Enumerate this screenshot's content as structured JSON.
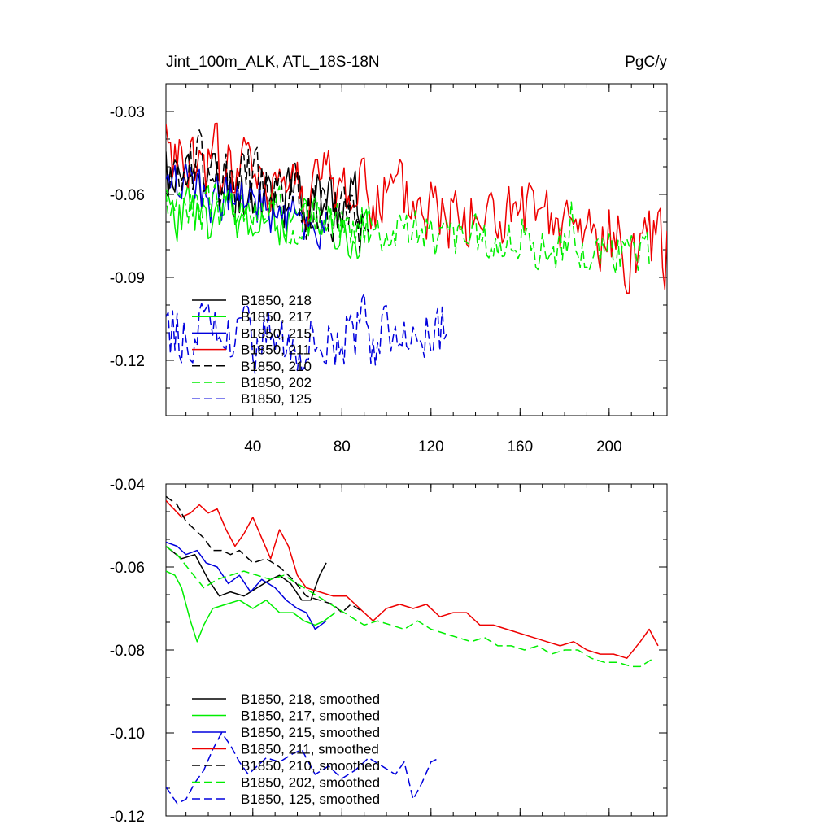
{
  "page": {
    "title_left": "Jint_100m_ALK, ATL_18S-18N",
    "title_right": "PgC/y"
  },
  "chart_data": [
    {
      "type": "line",
      "title": "Jint_100m_ALK, ATL_18S-18N",
      "units": "PgC/y",
      "xlim": [
        1,
        226
      ],
      "ylim": [
        -0.14,
        -0.02
      ],
      "xticks": [
        40,
        80,
        120,
        160,
        200
      ],
      "xtick_labels": [
        "40",
        "80",
        "120",
        "160",
        "200"
      ],
      "yticks": [
        -0.03,
        -0.06,
        -0.09,
        -0.12
      ],
      "ytick_labels": [
        "-0.03",
        "-0.06",
        "-0.09",
        "-0.12"
      ],
      "series": [
        {
          "name": "B1850, 218",
          "color": "#000000",
          "dash": "solid",
          "x_start": 1,
          "x_end": 88,
          "level_start": -0.054,
          "level_end": -0.064,
          "noise": 0.009,
          "seed": 11
        },
        {
          "name": "B1850, 217",
          "color": "#00ee00",
          "dash": "solid",
          "x_start": 1,
          "x_end": 93,
          "level_start": -0.066,
          "level_end": -0.073,
          "noise": 0.007,
          "seed": 23
        },
        {
          "name": "B1850, 215",
          "color": "#0000dd",
          "dash": "solid",
          "x_start": 1,
          "x_end": 73,
          "level_start": -0.057,
          "level_end": -0.071,
          "noise": 0.007,
          "seed": 37
        },
        {
          "name": "B1850, 211",
          "color": "#ee0000",
          "dash": "solid",
          "x_start": 1,
          "x_end": 226,
          "level_start": -0.047,
          "level_end": -0.081,
          "noise": 0.01,
          "seed": 41
        },
        {
          "name": "B1850, 210",
          "color": "#000000",
          "dash": "dashed",
          "x_start": 1,
          "x_end": 92,
          "level_start": -0.048,
          "level_end": -0.072,
          "noise": 0.009,
          "seed": 53
        },
        {
          "name": "B1850, 202",
          "color": "#00ee00",
          "dash": "dashed",
          "x_start": 1,
          "x_end": 218,
          "level_start": -0.063,
          "level_end": -0.083,
          "noise": 0.006,
          "seed": 67
        },
        {
          "name": "B1850, 125",
          "color": "#0000dd",
          "dash": "dashed",
          "x_start": 1,
          "x_end": 127,
          "level_start": -0.11,
          "level_end": -0.11,
          "noise": 0.009,
          "seed": 79
        }
      ],
      "legend": [
        "B1850, 218",
        "B1850, 217",
        "B1850, 215",
        "B1850, 211",
        "B1850, 210",
        "B1850, 202",
        "B1850, 125"
      ],
      "legend_position": "bottom-left"
    },
    {
      "type": "line",
      "xlim": [
        1,
        226
      ],
      "ylim": [
        -0.12,
        -0.04
      ],
      "xticks": [
        40,
        80,
        120,
        160,
        200
      ],
      "yticks": [
        -0.04,
        -0.06,
        -0.08,
        -0.1,
        -0.12
      ],
      "ytick_labels": [
        "-0.04",
        "-0.06",
        "-0.08",
        "-0.10",
        "-0.12"
      ],
      "series": [
        {
          "name": "B1850, 218, smoothed",
          "color": "#000000",
          "dash": "solid",
          "x_start": 1,
          "x_end": 73,
          "points": [
            [
              1,
              -0.055
            ],
            [
              8,
              -0.058
            ],
            [
              14,
              -0.057
            ],
            [
              20,
              -0.063
            ],
            [
              25,
              -0.067
            ],
            [
              30,
              -0.066
            ],
            [
              36,
              -0.067
            ],
            [
              42,
              -0.065
            ],
            [
              48,
              -0.063
            ],
            [
              52,
              -0.062
            ],
            [
              57,
              -0.064
            ],
            [
              62,
              -0.068
            ],
            [
              66,
              -0.068
            ],
            [
              70,
              -0.062
            ],
            [
              73,
              -0.059
            ]
          ]
        },
        {
          "name": "B1850, 217, smoothed",
          "color": "#00ee00",
          "dash": "solid",
          "x_start": 1,
          "x_end": 77,
          "points": [
            [
              1,
              -0.061
            ],
            [
              5,
              -0.062
            ],
            [
              8,
              -0.065
            ],
            [
              12,
              -0.073
            ],
            [
              15,
              -0.078
            ],
            [
              18,
              -0.074
            ],
            [
              22,
              -0.07
            ],
            [
              28,
              -0.069
            ],
            [
              34,
              -0.068
            ],
            [
              40,
              -0.07
            ],
            [
              46,
              -0.068
            ],
            [
              52,
              -0.071
            ],
            [
              58,
              -0.071
            ],
            [
              63,
              -0.073
            ],
            [
              68,
              -0.074
            ],
            [
              72,
              -0.073
            ],
            [
              77,
              -0.071
            ]
          ]
        },
        {
          "name": "B1850, 215, smoothed",
          "color": "#0000dd",
          "dash": "solid",
          "x_start": 1,
          "x_end": 73,
          "points": [
            [
              1,
              -0.054
            ],
            [
              6,
              -0.055
            ],
            [
              10,
              -0.057
            ],
            [
              15,
              -0.056
            ],
            [
              19,
              -0.059
            ],
            [
              24,
              -0.06
            ],
            [
              29,
              -0.064
            ],
            [
              34,
              -0.062
            ],
            [
              39,
              -0.066
            ],
            [
              44,
              -0.063
            ],
            [
              50,
              -0.065
            ],
            [
              55,
              -0.068
            ],
            [
              60,
              -0.07
            ],
            [
              64,
              -0.071
            ],
            [
              68,
              -0.075
            ],
            [
              73,
              -0.073
            ]
          ]
        },
        {
          "name": "B1850, 211, smoothed",
          "color": "#ee0000",
          "dash": "solid",
          "x_start": 1,
          "x_end": 222,
          "points": [
            [
              1,
              -0.044
            ],
            [
              8,
              -0.048
            ],
            [
              12,
              -0.047
            ],
            [
              16,
              -0.045
            ],
            [
              20,
              -0.047
            ],
            [
              24,
              -0.046
            ],
            [
              28,
              -0.051
            ],
            [
              32,
              -0.055
            ],
            [
              36,
              -0.052
            ],
            [
              40,
              -0.048
            ],
            [
              44,
              -0.053
            ],
            [
              48,
              -0.058
            ],
            [
              52,
              -0.051
            ],
            [
              56,
              -0.055
            ],
            [
              60,
              -0.062
            ],
            [
              64,
              -0.065
            ],
            [
              70,
              -0.066
            ],
            [
              76,
              -0.067
            ],
            [
              82,
              -0.067
            ],
            [
              88,
              -0.07
            ],
            [
              94,
              -0.073
            ],
            [
              100,
              -0.07
            ],
            [
              106,
              -0.069
            ],
            [
              112,
              -0.07
            ],
            [
              118,
              -0.069
            ],
            [
              124,
              -0.072
            ],
            [
              130,
              -0.071
            ],
            [
              136,
              -0.071
            ],
            [
              142,
              -0.074
            ],
            [
              148,
              -0.074
            ],
            [
              154,
              -0.075
            ],
            [
              160,
              -0.076
            ],
            [
              166,
              -0.077
            ],
            [
              172,
              -0.078
            ],
            [
              178,
              -0.079
            ],
            [
              184,
              -0.078
            ],
            [
              190,
              -0.08
            ],
            [
              196,
              -0.081
            ],
            [
              202,
              -0.081
            ],
            [
              208,
              -0.082
            ],
            [
              214,
              -0.078
            ],
            [
              218,
              -0.075
            ],
            [
              222,
              -0.079
            ]
          ]
        },
        {
          "name": "B1850, 210, smoothed",
          "color": "#000000",
          "dash": "dashed",
          "x_start": 1,
          "x_end": 90,
          "points": [
            [
              1,
              -0.043
            ],
            [
              6,
              -0.045
            ],
            [
              10,
              -0.049
            ],
            [
              14,
              -0.051
            ],
            [
              18,
              -0.053
            ],
            [
              22,
              -0.056
            ],
            [
              26,
              -0.056
            ],
            [
              30,
              -0.057
            ],
            [
              34,
              -0.056
            ],
            [
              40,
              -0.059
            ],
            [
              46,
              -0.058
            ],
            [
              52,
              -0.06
            ],
            [
              58,
              -0.063
            ],
            [
              64,
              -0.067
            ],
            [
              70,
              -0.068
            ],
            [
              76,
              -0.069
            ],
            [
              80,
              -0.071
            ],
            [
              84,
              -0.069
            ],
            [
              90,
              -0.071
            ]
          ]
        },
        {
          "name": "B1850, 202, smoothed",
          "color": "#00ee00",
          "dash": "dashed",
          "x_start": 1,
          "x_end": 220,
          "points": [
            [
              1,
              -0.055
            ],
            [
              6,
              -0.057
            ],
            [
              12,
              -0.061
            ],
            [
              18,
              -0.065
            ],
            [
              24,
              -0.063
            ],
            [
              30,
              -0.062
            ],
            [
              36,
              -0.061
            ],
            [
              42,
              -0.062
            ],
            [
              48,
              -0.063
            ],
            [
              54,
              -0.062
            ],
            [
              60,
              -0.064
            ],
            [
              66,
              -0.066
            ],
            [
              72,
              -0.068
            ],
            [
              78,
              -0.07
            ],
            [
              84,
              -0.072
            ],
            [
              90,
              -0.074
            ],
            [
              96,
              -0.073
            ],
            [
              102,
              -0.074
            ],
            [
              108,
              -0.075
            ],
            [
              114,
              -0.073
            ],
            [
              120,
              -0.075
            ],
            [
              126,
              -0.076
            ],
            [
              132,
              -0.077
            ],
            [
              138,
              -0.078
            ],
            [
              144,
              -0.077
            ],
            [
              150,
              -0.079
            ],
            [
              156,
              -0.079
            ],
            [
              162,
              -0.08
            ],
            [
              168,
              -0.079
            ],
            [
              174,
              -0.081
            ],
            [
              180,
              -0.08
            ],
            [
              186,
              -0.08
            ],
            [
              192,
              -0.082
            ],
            [
              198,
              -0.083
            ],
            [
              204,
              -0.083
            ],
            [
              210,
              -0.084
            ],
            [
              214,
              -0.084
            ],
            [
              220,
              -0.082
            ]
          ]
        },
        {
          "name": "B1850, 125, smoothed",
          "color": "#0000dd",
          "dash": "dashed",
          "x_start": 1,
          "x_end": 124,
          "points": [
            [
              1,
              -0.113
            ],
            [
              6,
              -0.117
            ],
            [
              10,
              -0.116
            ],
            [
              14,
              -0.112
            ],
            [
              18,
              -0.109
            ],
            [
              22,
              -0.104
            ],
            [
              26,
              -0.1
            ],
            [
              30,
              -0.103
            ],
            [
              34,
              -0.107
            ],
            [
              38,
              -0.11
            ],
            [
              42,
              -0.108
            ],
            [
              46,
              -0.106
            ],
            [
              52,
              -0.107
            ],
            [
              58,
              -0.105
            ],
            [
              62,
              -0.104
            ],
            [
              68,
              -0.11
            ],
            [
              74,
              -0.108
            ],
            [
              80,
              -0.111
            ],
            [
              86,
              -0.109
            ],
            [
              92,
              -0.106
            ],
            [
              98,
              -0.108
            ],
            [
              104,
              -0.11
            ],
            [
              108,
              -0.107
            ],
            [
              112,
              -0.116
            ],
            [
              116,
              -0.112
            ],
            [
              120,
              -0.107
            ],
            [
              124,
              -0.106
            ]
          ]
        }
      ],
      "legend": [
        "B1850, 218, smoothed",
        "B1850, 217, smoothed",
        "B1850, 215, smoothed",
        "B1850, 211, smoothed",
        "B1850, 210, smoothed",
        "B1850, 202, smoothed",
        "B1850, 125, smoothed"
      ],
      "legend_position": "bottom-left"
    }
  ]
}
